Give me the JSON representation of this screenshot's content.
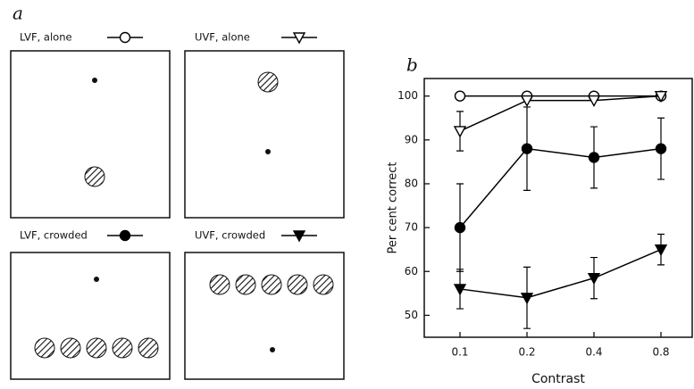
{
  "panel_a": {
    "label": "a"
  },
  "chart_data": {
    "type": "line",
    "panel_label": "b",
    "x_label": "Contrast",
    "y_label": "Per cent correct",
    "categories": [
      "0.1",
      "0.2",
      "0.4",
      "0.8"
    ],
    "ylim": [
      45,
      104
    ],
    "yticks": [
      50,
      60,
      70,
      80,
      90,
      100
    ],
    "series": [
      {
        "name": "LVF, alone",
        "color": "#000000",
        "marker": "circle",
        "filled": false,
        "values": [
          100,
          100,
          100,
          100
        ],
        "errors": [
          null,
          null,
          null,
          null
        ]
      },
      {
        "name": "UVF, alone",
        "color": "#000000",
        "marker": "triangle-down",
        "filled": false,
        "values": [
          92,
          99,
          99,
          100
        ],
        "errors": [
          4.5,
          null,
          null,
          null
        ]
      },
      {
        "name": "LVF, crowded",
        "color": "#000000",
        "marker": "circle",
        "filled": true,
        "values": [
          70,
          88,
          86,
          88
        ],
        "errors": [
          10,
          9.5,
          7,
          7
        ]
      },
      {
        "name": "UVF, crowded",
        "color": "#000000",
        "marker": "triangle-down",
        "filled": true,
        "values": [
          56,
          54,
          58.5,
          65
        ],
        "errors": [
          4.5,
          7,
          4.7,
          3.5
        ]
      }
    ]
  }
}
